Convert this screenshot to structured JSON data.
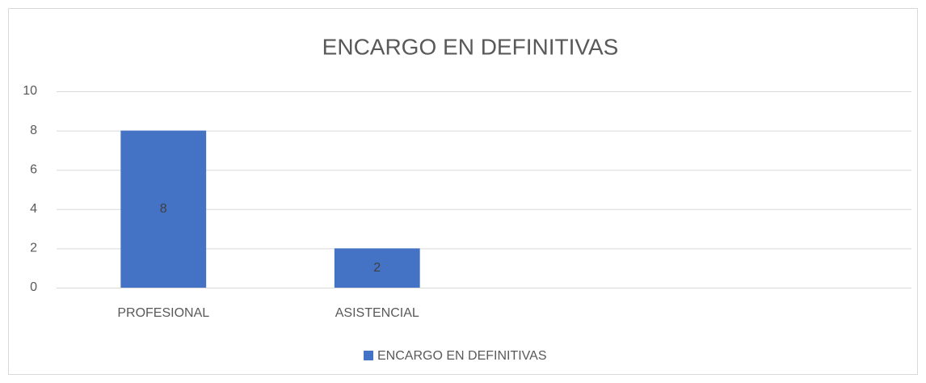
{
  "chart_data": {
    "type": "bar",
    "title": "ENCARGO EN DEFINITIVAS",
    "categories": [
      "PROFESIONAL",
      "ASISTENCIAL",
      null,
      null
    ],
    "series": [
      {
        "name": "ENCARGO EN DEFINITIVAS",
        "color": "#4472c4",
        "values": [
          8,
          2,
          null,
          null
        ]
      }
    ],
    "ylim": [
      0,
      10
    ],
    "yticks": [
      0,
      2,
      4,
      6,
      8,
      10
    ],
    "grid": true,
    "legend": "bottom"
  }
}
